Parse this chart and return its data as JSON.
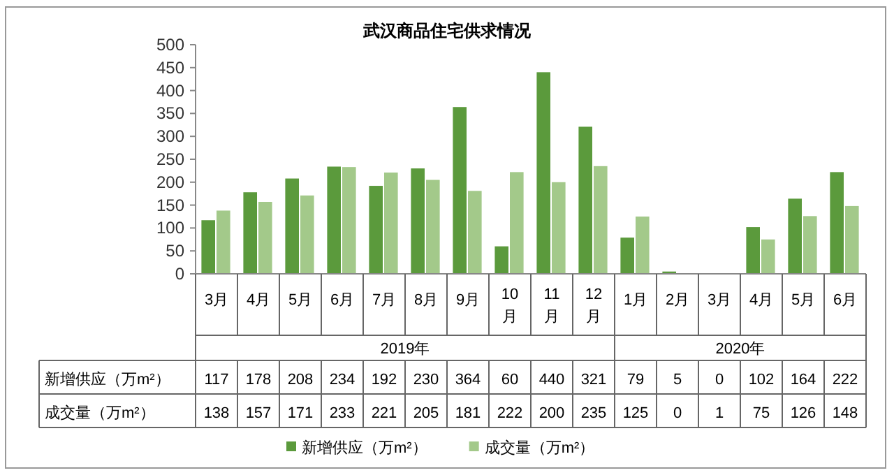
{
  "chart_data": {
    "type": "bar",
    "title": "武汉商品住宅供求情况",
    "categories": [
      "3月",
      "4月",
      "5月",
      "6月",
      "7月",
      "8月",
      "9月",
      "10月",
      "11月",
      "12月",
      "1月",
      "2月",
      "3月",
      "4月",
      "5月",
      "6月"
    ],
    "series": [
      {
        "name": "新增供应（万m²）",
        "color": "#5b9a3c",
        "values": [
          117,
          178,
          208,
          234,
          192,
          230,
          364,
          60,
          440,
          321,
          79,
          5,
          0,
          102,
          164,
          222
        ]
      },
      {
        "name": "成交量（万m²）",
        "color": "#a3c98a",
        "values": [
          138,
          157,
          171,
          233,
          221,
          205,
          181,
          222,
          200,
          235,
          125,
          0,
          1,
          75,
          126,
          148
        ]
      }
    ],
    "ylim": [
      0,
      500
    ],
    "yticks": [
      0,
      50,
      100,
      150,
      200,
      250,
      300,
      350,
      400,
      450,
      500
    ],
    "grid": false,
    "legend": "bottom",
    "data_labels": true,
    "annotations": [
      "2019年",
      "2020年"
    ]
  }
}
